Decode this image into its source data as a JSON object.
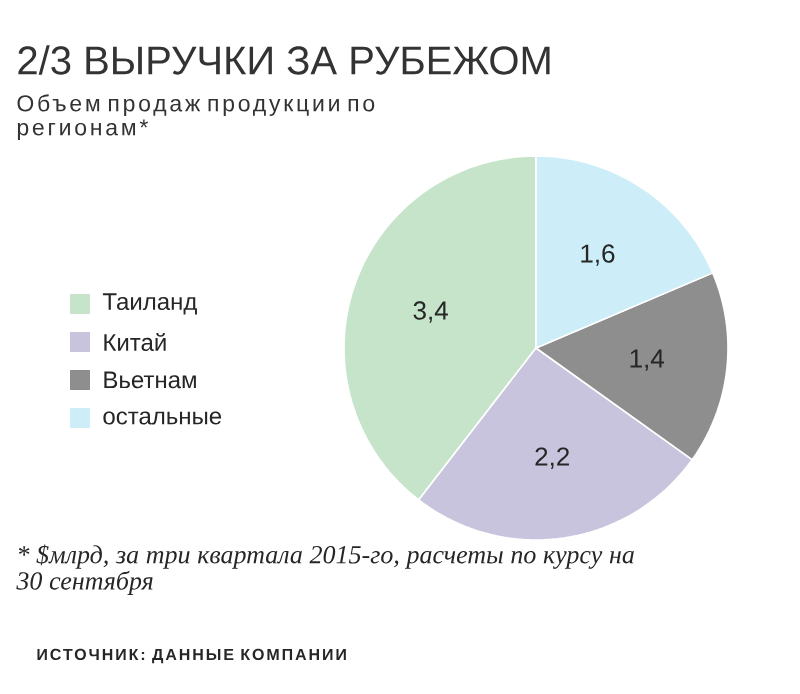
{
  "chart_data": {
    "type": "pie",
    "title": "2/3 ВЫРУЧКИ ЗА РУБЕЖОМ",
    "subtitle": "Объем продаж продукции по регионам*",
    "categories": [
      "Таиланд",
      "Китай",
      "Вьетнам",
      "остальные"
    ],
    "values": [
      3.4,
      2.2,
      1.4,
      1.6
    ],
    "value_labels": [
      "3,4",
      "2,2",
      "1,4",
      "1,6"
    ],
    "colors": [
      "#c6e4c9",
      "#c9c4de",
      "#8e8e8e",
      "#cdeef8"
    ],
    "legend": "left",
    "annotations": [
      "* $млрд, за три квартала 2015-го, расчеты по курсу на 30 сентября",
      "ИСТОЧНИК: ДАННЫЕ КОМПАНИИ"
    ]
  }
}
